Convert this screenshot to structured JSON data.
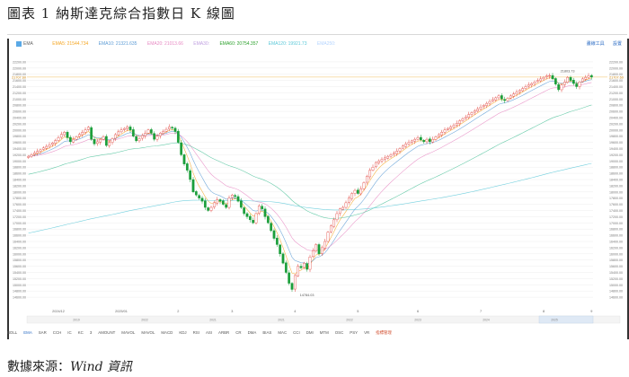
{
  "figure_title": "圖表 1 納斯達克綜合指數日 K 線圖",
  "source": {
    "prefix": "數據來源：",
    "name": "Wind 資訊"
  },
  "legend": {
    "items": [
      "EMA",
      "EMA5: 21544.734",
      "EMA10: 21321.635",
      "EMA20: 21013.66",
      "EMA30: ",
      "EMA60: 20754.357",
      "EMA120: 19921.73",
      "EMA250: "
    ],
    "colors": [
      "#555555",
      "#f5a623",
      "#5b9bd5",
      "#e78ac3",
      "#c0a0e0",
      "#2ca02c",
      "#5ac8d8",
      "#b4d4ff"
    ]
  },
  "actions": [
    "畫線工具",
    "設置"
  ],
  "bottom_toolbar": {
    "items": [
      "BOLL",
      "EMA",
      "SAR",
      "CCH",
      "IC",
      "KC",
      "3",
      "AMOUNT",
      "MAVOL",
      "MAVOL",
      "MACD",
      "KDJ",
      "RSI",
      "ASI",
      "ARBR",
      "CR",
      "DMA",
      "BIAS",
      "MAC",
      "CCI",
      "DMI",
      "MTM",
      "OSC",
      "PSY",
      "VR",
      "指標管理"
    ],
    "active_index": 1,
    "accent_index": 25
  },
  "chart_data": {
    "type": "candlestick",
    "title": "",
    "ylabel": "",
    "ylim": [
      14400,
      22400
    ],
    "y_ticks": [
      22200,
      22000,
      21800,
      21600,
      21400,
      21200,
      21000,
      20800,
      20600,
      20400,
      20200,
      20000,
      19800,
      19600,
      19400,
      19200,
      19000,
      18800,
      18600,
      18400,
      18200,
      18000,
      17800,
      17600,
      17400,
      17200,
      17000,
      16800,
      16600,
      16400,
      16200,
      16000,
      15800,
      15600,
      15400,
      15200,
      15000,
      14800,
      14600
    ],
    "right_ticks": [
      22200,
      22000,
      21800,
      21600,
      21400,
      21200,
      21000,
      20800,
      20600,
      20400,
      20200,
      20000,
      19800,
      19600,
      19400,
      19200,
      19000,
      18800,
      18600,
      18400,
      18200,
      18000,
      17800,
      17600,
      17400,
      17200,
      17000,
      16800,
      16600,
      16400,
      16200,
      16000,
      15800,
      15600,
      15400,
      15200,
      15000,
      14800,
      14600
    ],
    "x_labels": [
      "2024/12",
      "2025/01",
      "2",
      "3",
      "4",
      "5",
      "6",
      "7",
      "8",
      "9"
    ],
    "x_label_index": [
      10,
      31,
      50,
      68,
      89,
      110,
      130,
      151,
      172,
      188
    ],
    "year_labels": [
      "2019",
      "2022",
      "2021",
      "2021",
      "2022",
      "2023",
      "2024",
      "2025"
    ],
    "current_value": 21707.6,
    "current_label": "21707.60",
    "annotations": [
      {
        "text": "21803.73",
        "index": 177,
        "value": 21803.73
      },
      {
        "text": "14784.03",
        "index": 90,
        "value": 14784.03
      }
    ],
    "closes": [
      19150,
      19200,
      19260,
      19310,
      19360,
      19420,
      19470,
      19520,
      19580,
      19660,
      19750,
      19860,
      19930,
      19750,
      19620,
      19700,
      19780,
      19860,
      19930,
      20000,
      20090,
      19700,
      19550,
      19620,
      19700,
      19780,
      19500,
      19600,
      19720,
      19850,
      19940,
      20000,
      20050,
      20100,
      20000,
      19800,
      19650,
      19720,
      19820,
      19900,
      20000,
      19900,
      19700,
      19800,
      19900,
      19960,
      20020,
      20100,
      20060,
      19950,
      19600,
      19200,
      18900,
      18700,
      18400,
      18000,
      17900,
      17800,
      17700,
      17500,
      17400,
      17500,
      17650,
      17750,
      17700,
      17600,
      17500,
      17800,
      17900,
      17850,
      17700,
      17500,
      17300,
      17200,
      17100,
      17000,
      17300,
      17550,
      17450,
      17200,
      17000,
      16750,
      16500,
      16300,
      16000,
      15700,
      15400,
      15050,
      14850,
      15300,
      15600,
      15550,
      15700,
      15500,
      15900,
      16100,
      16300,
      16000,
      16200,
      16400,
      16700,
      16900,
      17100,
      17300,
      17450,
      17500,
      17650,
      17800,
      17950,
      18050,
      17950,
      18100,
      18300,
      18500,
      18700,
      18800,
      18950,
      19000,
      19050,
      19100,
      19150,
      19200,
      19250,
      19320,
      19400,
      19480,
      19550,
      19600,
      19650,
      19700,
      19750,
      19680,
      19620,
      19700,
      19620,
      19700,
      19780,
      19850,
      19930,
      20000,
      20050,
      20100,
      20150,
      20220,
      20300,
      20360,
      20420,
      20500,
      20560,
      20620,
      20680,
      20740,
      20800,
      20860,
      20920,
      20980,
      21040,
      21100,
      21000,
      20950,
      21020,
      21100,
      21160,
      21220,
      21280,
      21340,
      21400,
      21460,
      21500,
      21550,
      21600,
      21650,
      21700,
      21750,
      21760,
      21650,
      21480,
      21300,
      21450,
      21550,
      21700,
      21600,
      21500,
      21400,
      21550,
      21650,
      21700,
      21750,
      21707
    ]
  }
}
